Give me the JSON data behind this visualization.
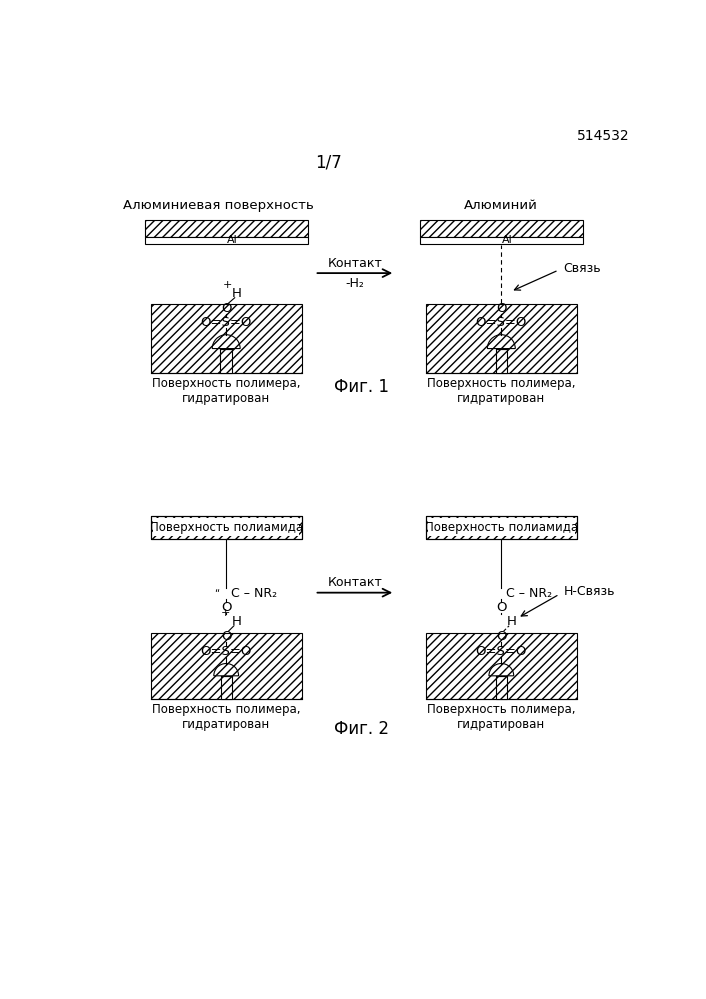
{
  "patent_number": "514532",
  "page_label": "1/7",
  "fig1_label": "Фиг. 1",
  "fig2_label": "Фиг. 2",
  "contact_label": "Контакт",
  "minus_h2_label": "-H₂",
  "fig1_left_title": "Алюминиевая поверхность",
  "fig1_right_title": "Алюминий",
  "fig1_polymer_label": "Поверхность полимера,\nгидратирован",
  "fig1_bond_label": "Связь",
  "fig2_left_title": "Поверхность полиамида",
  "fig2_right_title": "Поверхность полиамида",
  "fig2_polymer_label": "Поверхность полимера,\nгидратирован",
  "fig2_hbond_label": "Н-Связь"
}
